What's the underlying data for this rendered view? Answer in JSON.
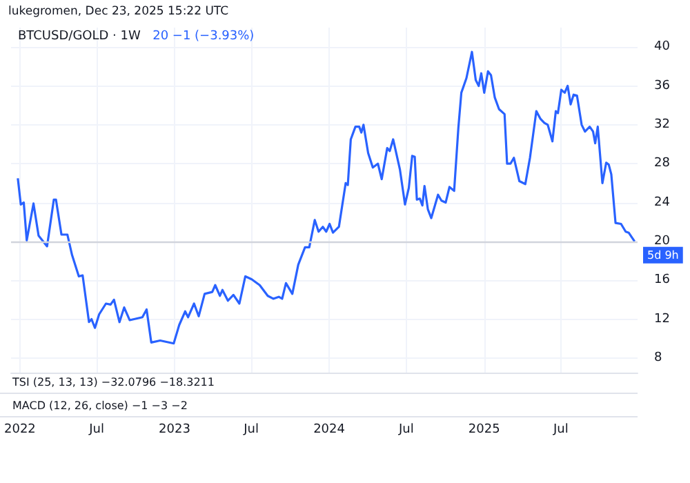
{
  "chart_data": {
    "type": "line",
    "title": "BTCUSD/GOLD · 1W",
    "subtitle": "20 −1 (−3.93%)",
    "annotations": [
      "lukegromen, Dec 23, 2025 15:22 UTC",
      "TSI (25, 13, 13) −32.0796 −18.3211",
      "MACD (12, 26, close) −1 −3 −2"
    ],
    "x": [
      "2021-12-27",
      "2022-01-03",
      "2022-01-10",
      "2022-01-17",
      "2022-02-02",
      "2022-02-14",
      "2022-03-06",
      "2022-03-22",
      "2022-03-27",
      "2022-04-09",
      "2022-04-23",
      "2022-05-04",
      "2022-05-20",
      "2022-05-29",
      "2022-06-13",
      "2022-06-19",
      "2022-06-27",
      "2022-07-07",
      "2022-07-23",
      "2022-08-03",
      "2022-08-11",
      "2022-08-24",
      "2022-09-04",
      "2022-09-17",
      "2022-10-17",
      "2022-10-27",
      "2022-11-07",
      "2022-11-28",
      "2022-12-30",
      "2023-01-12",
      "2023-01-26",
      "2023-02-02",
      "2023-02-16",
      "2023-02-27",
      "2023-03-13",
      "2023-03-31",
      "2023-04-07",
      "2023-04-18",
      "2023-04-24",
      "2023-05-07",
      "2023-05-20",
      "2023-06-03",
      "2023-06-17",
      "2023-07-02",
      "2023-07-21",
      "2023-08-09",
      "2023-08-22",
      "2023-09-04",
      "2023-09-12",
      "2023-09-21",
      "2023-10-06",
      "2023-10-20",
      "2023-11-05",
      "2023-11-15",
      "2023-11-28",
      "2023-12-07",
      "2023-12-17",
      "2023-12-25",
      "2024-01-02",
      "2024-01-10",
      "2024-01-24",
      "2024-02-09",
      "2024-02-14",
      "2024-02-21",
      "2024-03-03",
      "2024-03-12",
      "2024-03-17",
      "2024-03-22",
      "2024-04-02",
      "2024-04-13",
      "2024-04-25",
      "2024-05-04",
      "2024-05-17",
      "2024-05-23",
      "2024-05-31",
      "2024-06-16",
      "2024-06-28",
      "2024-07-07",
      "2024-07-15",
      "2024-07-21",
      "2024-07-26",
      "2024-08-02",
      "2024-08-08",
      "2024-08-13",
      "2024-08-21",
      "2024-08-29",
      "2024-09-14",
      "2024-09-22",
      "2024-10-02",
      "2024-10-11",
      "2024-10-22",
      "2024-11-01",
      "2024-11-08",
      "2024-11-20",
      "2024-12-03",
      "2024-12-12",
      "2024-12-19",
      "2024-12-25",
      "2025-01-01",
      "2025-01-10",
      "2025-01-17",
      "2025-01-26",
      "2025-02-05",
      "2025-02-18",
      "2025-02-24",
      "2025-03-04",
      "2025-03-12",
      "2025-03-25",
      "2025-04-08",
      "2025-04-19",
      "2025-05-04",
      "2025-05-14",
      "2025-05-23",
      "2025-05-31",
      "2025-06-11",
      "2025-06-19",
      "2025-06-24",
      "2025-07-02",
      "2025-07-10",
      "2025-07-17",
      "2025-07-24",
      "2025-07-31",
      "2025-08-08",
      "2025-08-19",
      "2025-08-27",
      "2025-09-07",
      "2025-09-15",
      "2025-09-20",
      "2025-09-26",
      "2025-10-07",
      "2025-10-16",
      "2025-10-22",
      "2025-10-28",
      "2025-11-07",
      "2025-11-20",
      "2025-12-01",
      "2025-12-08",
      "2025-12-22"
    ],
    "series": [
      {
        "color": "#2962ff",
        "values": [
          26.5,
          23.8,
          24.0,
          20.1,
          23.9,
          20.6,
          19.5,
          24.3,
          24.3,
          20.7,
          20.7,
          18.6,
          16.4,
          16.5,
          11.7,
          12.0,
          11.1,
          12.5,
          13.6,
          13.5,
          14.0,
          11.7,
          13.2,
          11.9,
          12.2,
          13.0,
          9.6,
          9.8,
          9.5,
          11.4,
          12.8,
          12.2,
          13.6,
          12.3,
          14.6,
          14.8,
          15.5,
          14.4,
          15.0,
          13.9,
          14.5,
          13.6,
          16.4,
          16.1,
          15.5,
          14.4,
          14.1,
          14.3,
          14.1,
          15.7,
          14.6,
          17.6,
          19.4,
          19.4,
          22.2,
          21.0,
          21.5,
          21.0,
          21.8,
          20.9,
          21.5,
          26.0,
          25.8,
          30.5,
          31.8,
          31.8,
          31.2,
          32.0,
          29.1,
          27.6,
          28.0,
          26.4,
          29.6,
          29.3,
          30.5,
          27.4,
          23.8,
          25.5,
          28.8,
          28.7,
          24.3,
          24.4,
          23.7,
          25.7,
          23.3,
          22.4,
          24.8,
          24.2,
          24.0,
          25.6,
          25.2,
          31.7,
          35.3,
          36.8,
          39.5,
          36.6,
          36.0,
          37.3,
          35.3,
          37.5,
          37.1,
          34.8,
          33.6,
          33.1,
          28.0,
          28.0,
          28.6,
          26.2,
          25.9,
          28.6,
          33.4,
          32.6,
          32.2,
          32.0,
          30.3,
          33.4,
          33.2,
          35.6,
          35.3,
          36.0,
          34.1,
          35.1,
          35.0,
          32.0,
          31.3,
          31.8,
          31.3,
          30.1,
          31.8,
          26.0,
          28.1,
          27.9,
          26.9,
          21.9,
          21.8,
          21.0,
          20.9,
          20
        ]
      }
    ],
    "xlim": [
      "2021-12-11",
      "2025-12-29"
    ],
    "xticks": [
      {
        "value": "2022-01-01",
        "label": "2022"
      },
      {
        "value": "2022-07-01",
        "label": "Jul"
      },
      {
        "value": "2023-01-01",
        "label": "2023"
      },
      {
        "value": "2023-07-01",
        "label": "Jul"
      },
      {
        "value": "2024-01-01",
        "label": "2024"
      },
      {
        "value": "2024-07-01",
        "label": "Jul"
      },
      {
        "value": "2025-01-01",
        "label": "2025"
      },
      {
        "value": "2025-07-01",
        "label": "Jul"
      }
    ],
    "ylim": [
      6.5,
      42
    ],
    "yticks": [
      8,
      12,
      16,
      20,
      24,
      28,
      32,
      36,
      40
    ],
    "ref_lines": [
      {
        "axis": "y",
        "value": 20,
        "label": "5d 9h",
        "color": "#d1d4dc"
      }
    ],
    "grid": true,
    "marker": "none",
    "line_style": "solid"
  }
}
